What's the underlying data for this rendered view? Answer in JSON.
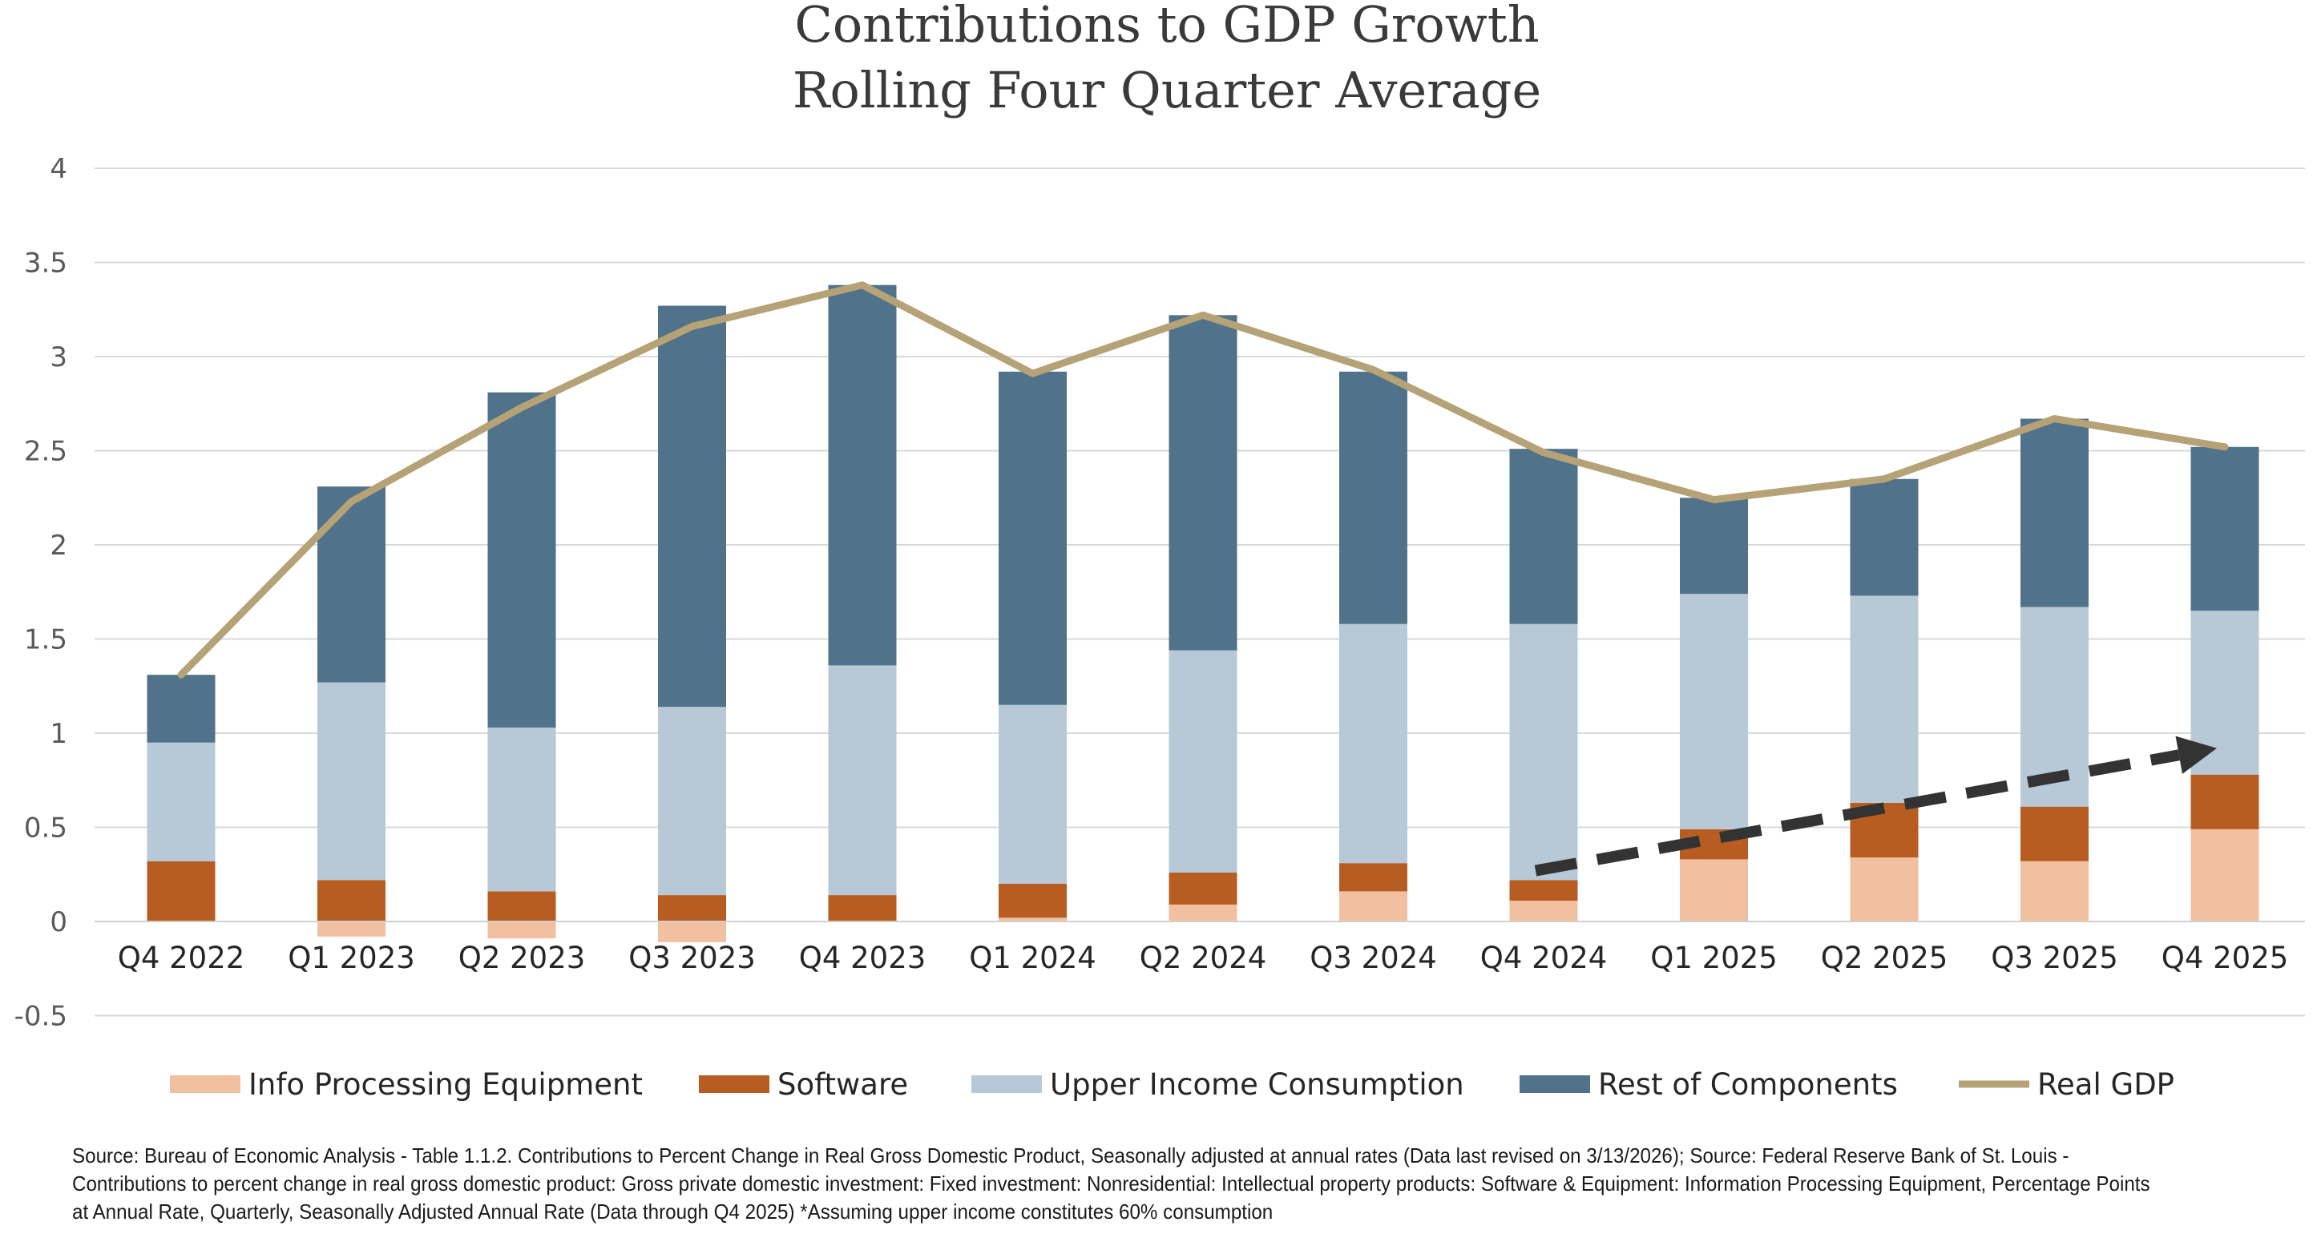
{
  "chart_data": {
    "type": "bar",
    "stacked": true,
    "title": "Contributions to GDP Growth",
    "subtitle": "Rolling Four Quarter Average",
    "categories": [
      "Q4 2022",
      "Q1 2023",
      "Q2 2023",
      "Q3 2023",
      "Q4 2023",
      "Q1 2024",
      "Q2 2024",
      "Q3 2024",
      "Q4 2024",
      "Q1 2025",
      "Q2 2025",
      "Q3 2025",
      "Q4 2025"
    ],
    "ylim": [
      -0.5,
      4
    ],
    "yticks": [
      "-0.5",
      "0",
      "0.5",
      "1",
      "1.5",
      "2",
      "2.5",
      "3",
      "3.5",
      "4"
    ],
    "grid": true,
    "legend_position": "bottom",
    "series": [
      {
        "name": "Info Processing Equipment",
        "color": "#f0c0a0",
        "kind": "bar",
        "values": [
          0.0,
          -0.08,
          -0.09,
          -0.11,
          0.0,
          0.02,
          0.09,
          0.16,
          0.11,
          0.33,
          0.34,
          0.32,
          0.49
        ]
      },
      {
        "name": "Software",
        "color": "#b85d22",
        "kind": "bar",
        "values": [
          0.32,
          0.22,
          0.16,
          0.14,
          0.14,
          0.18,
          0.17,
          0.15,
          0.11,
          0.16,
          0.29,
          0.29,
          0.29
        ]
      },
      {
        "name": "Upper Income Consumption",
        "color": "#b7c9d6",
        "kind": "bar",
        "values": [
          0.63,
          1.05,
          0.87,
          1.0,
          1.22,
          0.95,
          1.18,
          1.27,
          1.36,
          1.25,
          1.1,
          1.06,
          0.87
        ]
      },
      {
        "name": "Rest of Components",
        "color": "#50728a",
        "kind": "bar",
        "values": [
          0.36,
          1.04,
          1.78,
          2.13,
          2.02,
          1.77,
          1.78,
          1.34,
          0.93,
          0.51,
          0.62,
          1.0,
          0.87
        ]
      },
      {
        "name": "Real GDP",
        "color": "#b5a276",
        "kind": "line",
        "values": [
          1.31,
          2.23,
          2.73,
          3.16,
          3.38,
          2.91,
          3.22,
          2.93,
          2.49,
          2.24,
          2.35,
          2.67,
          2.52
        ]
      }
    ],
    "annotations": [
      {
        "type": "dashed-arrow",
        "color": "#333333",
        "from": {
          "x": "Q4 2024",
          "y": 0.27
        },
        "to": {
          "x": "Q4 2025",
          "y": 0.92
        }
      }
    ]
  },
  "source_note": "Source: Bureau of Economic Analysis - Table 1.1.2. Contributions to Percent Change in Real Gross Domestic Product, Seasonally adjusted at annual rates (Data last revised on 3/13/2026); Source: Federal Reserve Bank of St. Louis - Contributions to percent change in real gross domestic product: Gross private domestic investment: Fixed investment: Nonresidential: Intellectual property products: Software & Equipment: Information Processing Equipment, Percentage Points at Annual Rate, Quarterly, Seasonally Adjusted Annual Rate (Data through Q4 2025) *Assuming upper income constitutes 60% consumption"
}
